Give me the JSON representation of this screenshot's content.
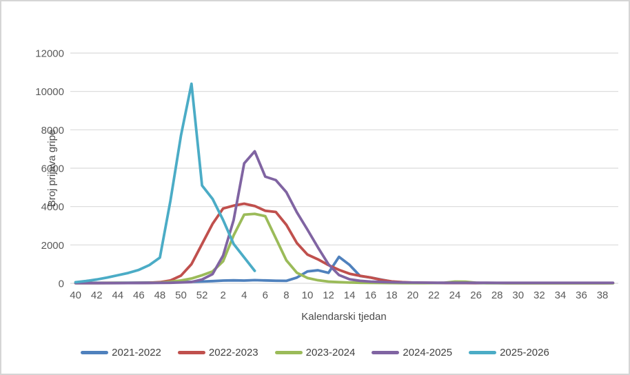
{
  "chart_data": {
    "type": "line",
    "title": "",
    "xlabel": "Kalendarski tjedan",
    "ylabel": "Broj prijava gripe",
    "ylim": [
      0,
      12000
    ],
    "ytick_step": 2000,
    "yticks": [
      0,
      2000,
      4000,
      6000,
      8000,
      10000,
      12000
    ],
    "grid": "horizontal",
    "gridline_color": "#d9d9d9",
    "legend_position": "bottom",
    "categories": [
      40,
      41,
      42,
      43,
      44,
      45,
      46,
      47,
      48,
      49,
      50,
      51,
      52,
      1,
      2,
      3,
      4,
      5,
      6,
      7,
      8,
      9,
      10,
      11,
      12,
      13,
      14,
      15,
      16,
      17,
      18,
      19,
      20,
      21,
      22,
      23,
      24,
      25,
      26,
      27,
      28,
      29,
      30,
      31,
      32,
      33,
      34,
      35,
      36,
      37,
      38,
      39
    ],
    "xtick_every": 2,
    "series": [
      {
        "name": "2021-2022",
        "color": "#4F81BD",
        "values": [
          20,
          20,
          25,
          25,
          30,
          30,
          35,
          40,
          45,
          55,
          65,
          75,
          95,
          115,
          145,
          155,
          145,
          165,
          150,
          135,
          130,
          300,
          620,
          680,
          545,
          1380,
          960,
          380,
          300,
          195,
          90,
          45,
          30,
          20,
          20,
          15,
          15,
          15,
          10,
          10,
          10,
          10,
          10,
          10,
          10,
          10,
          10,
          10,
          10,
          10,
          10,
          10
        ]
      },
      {
        "name": "2022-2023",
        "color": "#C0504D",
        "values": [
          10,
          10,
          10,
          15,
          15,
          20,
          25,
          30,
          60,
          150,
          400,
          1000,
          2050,
          3100,
          3900,
          4050,
          4150,
          4030,
          3780,
          3720,
          3050,
          2100,
          1500,
          1250,
          950,
          700,
          500,
          390,
          300,
          180,
          100,
          60,
          40,
          30,
          25,
          20,
          20,
          20,
          15,
          15,
          15,
          10,
          10,
          10,
          10,
          10,
          10,
          10,
          10,
          10,
          10,
          15
        ]
      },
      {
        "name": "2023-2024",
        "color": "#9BBB59",
        "values": [
          10,
          10,
          10,
          10,
          15,
          15,
          20,
          25,
          40,
          80,
          150,
          250,
          420,
          620,
          1150,
          2500,
          3580,
          3620,
          3500,
          2350,
          1200,
          550,
          280,
          160,
          90,
          60,
          40,
          30,
          25,
          20,
          15,
          10,
          10,
          10,
          15,
          30,
          90,
          85,
          30,
          10,
          10,
          5,
          5,
          5,
          5,
          5,
          5,
          5,
          5,
          5,
          5,
          5
        ]
      },
      {
        "name": "2024-2025",
        "color": "#8064A2",
        "values": [
          10,
          10,
          10,
          10,
          10,
          15,
          15,
          20,
          25,
          30,
          45,
          70,
          200,
          480,
          1450,
          3300,
          6250,
          6880,
          5560,
          5380,
          4750,
          3700,
          2800,
          1870,
          990,
          430,
          210,
          130,
          90,
          70,
          55,
          45,
          40,
          35,
          30,
          30,
          30,
          30,
          30,
          30,
          25,
          25,
          25,
          25,
          25,
          25,
          25,
          25,
          25,
          25,
          25,
          25
        ]
      },
      {
        "name": "2025-2026",
        "color": "#4BACC6",
        "values": [
          60,
          120,
          200,
          300,
          420,
          540,
          700,
          950,
          1340,
          4300,
          7700,
          10400,
          5100,
          4400,
          3300,
          2050,
          1350,
          650
        ]
      }
    ]
  }
}
